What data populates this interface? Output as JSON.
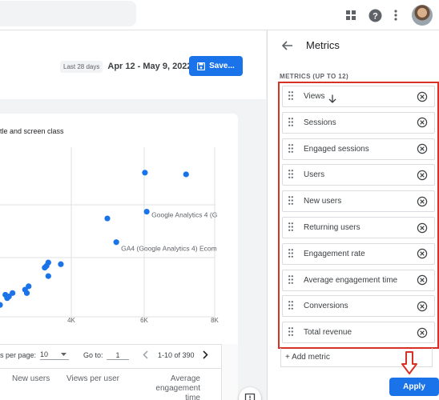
{
  "topbar": {
    "icons": [
      "apps-grid-icon",
      "help-icon",
      "more-vert-icon"
    ]
  },
  "header": {
    "date_chip": "Last 28 days",
    "date_range": "Apr 12 - May 9, 2022",
    "save_label": "Save..."
  },
  "card": {
    "title": "tle and screen class"
  },
  "chart_data": {
    "type": "scatter",
    "title": "tle and screen class",
    "x_ticks": [
      "K",
      "4K",
      "6K",
      "8K"
    ],
    "xlim": [
      2000,
      8000
    ],
    "points": [
      {
        "x": 6050,
        "y": 0.85
      },
      {
        "x": 7200,
        "y": 0.84
      },
      {
        "x": 5000,
        "y": 0.58
      },
      {
        "x": 6100,
        "y": 0.62
      },
      {
        "x": 5250,
        "y": 0.44
      },
      {
        "x": 3700,
        "y": 0.31
      },
      {
        "x": 3350,
        "y": 0.32
      },
      {
        "x": 3300,
        "y": 0.3
      },
      {
        "x": 3250,
        "y": 0.29
      },
      {
        "x": 3350,
        "y": 0.24
      },
      {
        "x": 2800,
        "y": 0.18
      },
      {
        "x": 2700,
        "y": 0.16
      },
      {
        "x": 2750,
        "y": 0.14
      },
      {
        "x": 2350,
        "y": 0.14
      },
      {
        "x": 2250,
        "y": 0.12
      },
      {
        "x": 2150,
        "y": 0.13
      },
      {
        "x": 2200,
        "y": 0.11
      },
      {
        "x": 2000,
        "y": 0.07
      }
    ],
    "annotations": [
      {
        "text": "Google Analytics 4 (G",
        "x": 6100,
        "y": 0.62
      },
      {
        "text": "GA4 (Google Analytics 4) Ecom",
        "x": 5250,
        "y": 0.44
      }
    ],
    "point_color": "#1a73e8",
    "grid": true
  },
  "pager": {
    "rows_label": "s per page:",
    "rows_value": "10",
    "goto_label": "Go to:",
    "goto_value": "1",
    "range_text": "1-10 of 390"
  },
  "table": {
    "headers": [
      "New users",
      "Views per user",
      "Average engagement time"
    ],
    "header_line2": "engagement time",
    "header_line1": "Average"
  },
  "panel": {
    "title": "Metrics",
    "section_label": "METRICS (UP TO 12)",
    "metrics": [
      {
        "label": "Views"
      },
      {
        "label": "Sessions"
      },
      {
        "label": "Engaged sessions"
      },
      {
        "label": "Users"
      },
      {
        "label": "New users"
      },
      {
        "label": "Returning users"
      },
      {
        "label": "Engagement rate"
      },
      {
        "label": "Average engagement time"
      },
      {
        "label": "Conversions"
      },
      {
        "label": "Total revenue"
      }
    ],
    "add_label": "+ Add metric",
    "apply_label": "Apply"
  },
  "colors": {
    "accent": "#1a73e8",
    "highlight": "#d93025"
  }
}
